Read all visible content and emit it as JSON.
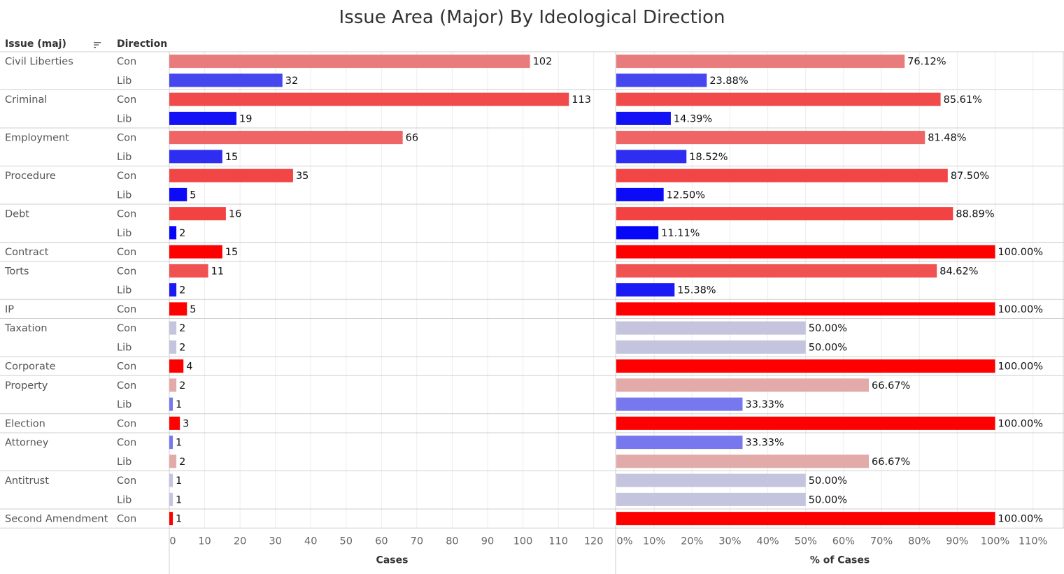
{
  "title": "Issue Area (Major) By Ideological Direction",
  "headers": {
    "issue": "Issue (maj)",
    "direction": "Direction"
  },
  "chart_data": {
    "type": "bar",
    "orientation": "horizontal",
    "title": "Issue Area (Major) By Ideological Direction",
    "rows": [
      {
        "issue": "Civil Liberties",
        "direction": "Con",
        "cases": 102,
        "pct": 76.12,
        "color": "#e87c7c"
      },
      {
        "issue": "",
        "direction": "Lib",
        "cases": 32,
        "pct": 23.88,
        "color": "#4747f0"
      },
      {
        "issue": "Criminal",
        "direction": "Con",
        "cases": 113,
        "pct": 85.61,
        "color": "#f04a4a"
      },
      {
        "issue": "",
        "direction": "Lib",
        "cases": 19,
        "pct": 14.39,
        "color": "#1212f5"
      },
      {
        "issue": "Employment",
        "direction": "Con",
        "cases": 66,
        "pct": 81.48,
        "color": "#ef6464"
      },
      {
        "issue": "",
        "direction": "Lib",
        "cases": 15,
        "pct": 18.52,
        "color": "#2e2ef2"
      },
      {
        "issue": "Procedure",
        "direction": "Con",
        "cases": 35,
        "pct": 87.5,
        "color": "#f24545"
      },
      {
        "issue": "",
        "direction": "Lib",
        "cases": 5,
        "pct": 12.5,
        "color": "#0b0bf8"
      },
      {
        "issue": "Debt",
        "direction": "Con",
        "cases": 16,
        "pct": 88.89,
        "color": "#f24242"
      },
      {
        "issue": "",
        "direction": "Lib",
        "cases": 2,
        "pct": 11.11,
        "color": "#0707f8"
      },
      {
        "issue": "Contract",
        "direction": "Con",
        "cases": 15,
        "pct": 100.0,
        "color": "#ff0000"
      },
      {
        "issue": "Torts",
        "direction": "Con",
        "cases": 11,
        "pct": 84.62,
        "color": "#f05252"
      },
      {
        "issue": "",
        "direction": "Lib",
        "cases": 2,
        "pct": 15.38,
        "color": "#1a1af4"
      },
      {
        "issue": "IP",
        "direction": "Con",
        "cases": 5,
        "pct": 100.0,
        "color": "#ff0000"
      },
      {
        "issue": "Taxation",
        "direction": "Con",
        "cases": 2,
        "pct": 50.0,
        "color": "#c4c4de"
      },
      {
        "issue": "",
        "direction": "Lib",
        "cases": 2,
        "pct": 50.0,
        "color": "#c4c4de"
      },
      {
        "issue": "Corporate",
        "direction": "Con",
        "cases": 4,
        "pct": 100.0,
        "color": "#ff0000"
      },
      {
        "issue": "Property",
        "direction": "Con",
        "cases": 2,
        "pct": 66.67,
        "color": "#e3aaaa"
      },
      {
        "issue": "",
        "direction": "Lib",
        "cases": 1,
        "pct": 33.33,
        "color": "#7777ee"
      },
      {
        "issue": "Election",
        "direction": "Con",
        "cases": 3,
        "pct": 100.0,
        "color": "#ff0000"
      },
      {
        "issue": "Attorney",
        "direction": "Con",
        "cases": 1,
        "pct": 33.33,
        "color": "#7777ee"
      },
      {
        "issue": "",
        "direction": "Lib",
        "cases": 2,
        "pct": 66.67,
        "color": "#e3aaaa"
      },
      {
        "issue": "Antitrust",
        "direction": "Con",
        "cases": 1,
        "pct": 50.0,
        "color": "#c4c4de"
      },
      {
        "issue": "",
        "direction": "Lib",
        "cases": 1,
        "pct": 50.0,
        "color": "#c4c4de"
      },
      {
        "issue": "Second Amendment",
        "direction": "Con",
        "cases": 1,
        "pct": 100.0,
        "color": "#ff0000"
      }
    ],
    "cases_axis": {
      "title": "Cases",
      "ticks": [
        0,
        10,
        20,
        30,
        40,
        50,
        60,
        70,
        80,
        90,
        100,
        110,
        120
      ],
      "range": [
        0,
        126
      ]
    },
    "pct_axis": {
      "title": "% of Cases",
      "ticks": [
        "0%",
        "10%",
        "20%",
        "30%",
        "40%",
        "50%",
        "60%",
        "70%",
        "80%",
        "90%",
        "100%",
        "110%"
      ],
      "range": [
        0,
        118
      ]
    },
    "grid": true
  }
}
